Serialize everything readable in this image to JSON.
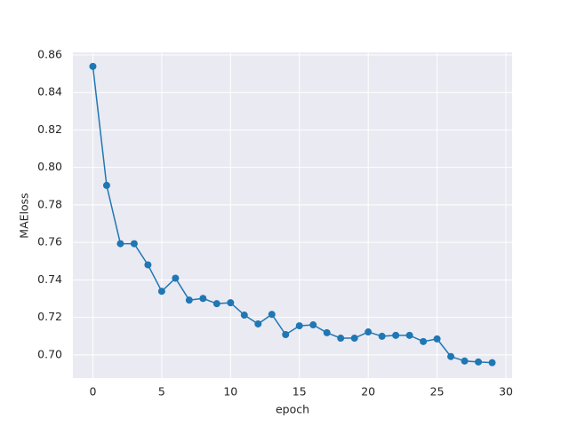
{
  "chart_data": {
    "type": "line",
    "xlabel": "epoch",
    "ylabel": "MAEloss",
    "x": [
      0,
      1,
      2,
      3,
      4,
      5,
      6,
      7,
      8,
      9,
      10,
      11,
      12,
      13,
      14,
      15,
      16,
      17,
      18,
      19,
      20,
      21,
      22,
      23,
      24,
      25,
      26,
      27,
      28,
      29
    ],
    "series": [
      {
        "color": "#1f77b4",
        "values": [
          0.8539,
          0.7904,
          0.7593,
          0.7593,
          0.748,
          0.7339,
          0.7409,
          0.7292,
          0.7301,
          0.7273,
          0.7278,
          0.7212,
          0.7165,
          0.7216,
          0.7108,
          0.7155,
          0.716,
          0.7118,
          0.7089,
          0.7089,
          0.7122,
          0.7099,
          0.7104,
          0.7104,
          0.7071,
          0.7085,
          0.6991,
          0.6967,
          0.6962,
          0.6958
        ]
      }
    ],
    "xlim": [
      -1.45,
      30.45
    ],
    "xticks": [
      0,
      5,
      10,
      15,
      20,
      25,
      30
    ],
    "ylim": [
      0.6876,
      0.8614
    ],
    "yticks": [
      {
        "value": 0.7,
        "label": "0.70"
      },
      0.72,
      0.74,
      0.76,
      0.78,
      {
        "value": 0.8,
        "label": "0.80"
      },
      0.82,
      0.84,
      0.86
    ],
    "grid": true,
    "markers": true
  }
}
